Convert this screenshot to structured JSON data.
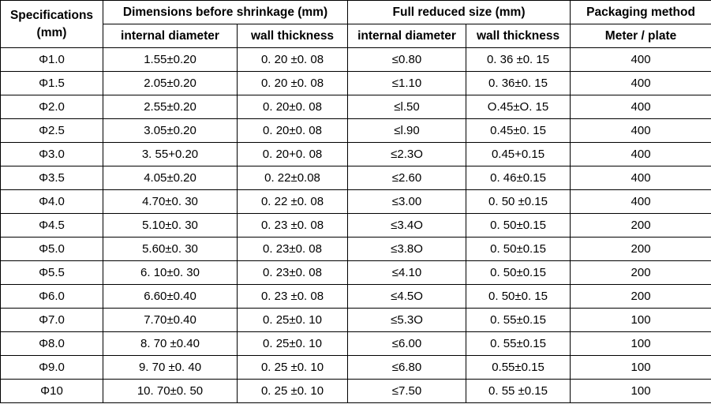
{
  "table": {
    "header": {
      "specifications": "Specifications (mm)",
      "before": "Dimensions before shrinkage  (mm)",
      "reduced": "Full reduced size  (mm)",
      "packaging": "Packaging method",
      "sub": [
        "internal diameter",
        "wall thickness",
        "internal diameter",
        "wall thickness",
        "Meter / plate"
      ]
    },
    "rows": [
      [
        "Φ1.0",
        "1.55±0.20",
        "0. 20 ±0. 08",
        "≤0.80",
        "0. 36 ±0. 15",
        "400"
      ],
      [
        "Φ1.5",
        "2.05±0.20",
        "0. 20 ±0. 08",
        "≤1.10",
        "0. 36±0. 15",
        "400"
      ],
      [
        "Φ2.0",
        "2.55±0.20",
        "0. 20±0. 08",
        "≤l.50",
        "O.45±O. 15",
        "400"
      ],
      [
        "Φ2.5",
        "3.05±0.20",
        "0. 20±0. 08",
        "≤l.90",
        "0.45±0. 15",
        "400"
      ],
      [
        "Φ3.0",
        "3. 55+0.20",
        "0. 20+0. 08",
        "≤2.3O",
        "0.45+0.15",
        "400"
      ],
      [
        "Φ3.5",
        "4.05±0.20",
        "0. 22±0.08",
        "≤2.60",
        "0. 46±0.15",
        "400"
      ],
      [
        "Φ4.0",
        "4.70±0. 30",
        "0. 22 ±0. 08",
        "≤3.00",
        "0. 50 ±0.15",
        "400"
      ],
      [
        "Φ4.5",
        "5.10±0. 30",
        "0. 23 ±0. 08",
        "≤3.4O",
        "0. 50±0.15",
        "200"
      ],
      [
        "Φ5.0",
        "5.60±0. 30",
        "0. 23±0. 08",
        "≤3.8O",
        "0. 50±0.15",
        "200"
      ],
      [
        "Φ5.5",
        "6. 10±0. 30",
        "0. 23±0. 08",
        "≤4.10",
        "0. 50±0.15",
        "200"
      ],
      [
        "Φ6.0",
        "6.60±0.40",
        "0. 23 ±0. 08",
        "≤4.5O",
        "0. 50±0. 15",
        "200"
      ],
      [
        "Φ7.0",
        "7.70±0.40",
        "0. 25±0. 10",
        "≤5.3O",
        "0. 55±0.15",
        "100"
      ],
      [
        "Φ8.0",
        "8. 70 ±0.40",
        "0. 25±0. 10",
        "≤6.00",
        "0. 55±0.15",
        "100"
      ],
      [
        "Φ9.0",
        "9. 70 ±0. 40",
        "0. 25 ±0. 10",
        "≤6.80",
        "0.55±0.15",
        "100"
      ],
      [
        "Φ10",
        "10. 70±0. 50",
        "0. 25 ±0. 10",
        "≤7.50",
        "0. 55 ±0.15",
        "100"
      ]
    ]
  }
}
